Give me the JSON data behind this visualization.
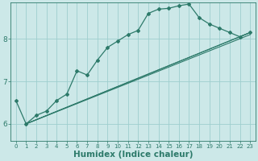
{
  "xlabel": "Humidex (Indice chaleur)",
  "ylabel": "",
  "bg_color": "#cce8e8",
  "line_color": "#2d7a6a",
  "xlim": [
    -0.5,
    23.5
  ],
  "ylim": [
    5.6,
    8.85
  ],
  "yticks": [
    6,
    7,
    8
  ],
  "xticks": [
    0,
    1,
    2,
    3,
    4,
    5,
    6,
    7,
    8,
    9,
    10,
    11,
    12,
    13,
    14,
    15,
    16,
    17,
    18,
    19,
    20,
    21,
    22,
    23
  ],
  "curve1_x": [
    0,
    1,
    2,
    3,
    4,
    5,
    6,
    7,
    8,
    9,
    10,
    11,
    12,
    13,
    14,
    15,
    16,
    17,
    18,
    19,
    20,
    21,
    22,
    23
  ],
  "curve1_y": [
    6.55,
    6.0,
    6.2,
    6.3,
    6.55,
    6.7,
    7.25,
    7.15,
    7.5,
    7.8,
    7.95,
    8.1,
    8.2,
    8.6,
    8.7,
    8.72,
    8.78,
    8.82,
    8.5,
    8.35,
    8.25,
    8.15,
    8.05,
    8.15
  ],
  "curve2_x": [
    1,
    23
  ],
  "curve2_y": [
    6.0,
    8.15
  ],
  "curve3_x": [
    1,
    23
  ],
  "curve3_y": [
    6.0,
    8.15
  ],
  "curve4_x": [
    1,
    23
  ],
  "curve4_y": [
    6.0,
    8.1
  ],
  "grid_color": "#9ecece",
  "tick_label_color": "#2d7a6a",
  "tick_fontsize_x": 5.0,
  "tick_fontsize_y": 6.5,
  "xlabel_fontsize": 7.5,
  "xlabel_color": "#2d7a6a",
  "xlabel_fontweight": "bold"
}
